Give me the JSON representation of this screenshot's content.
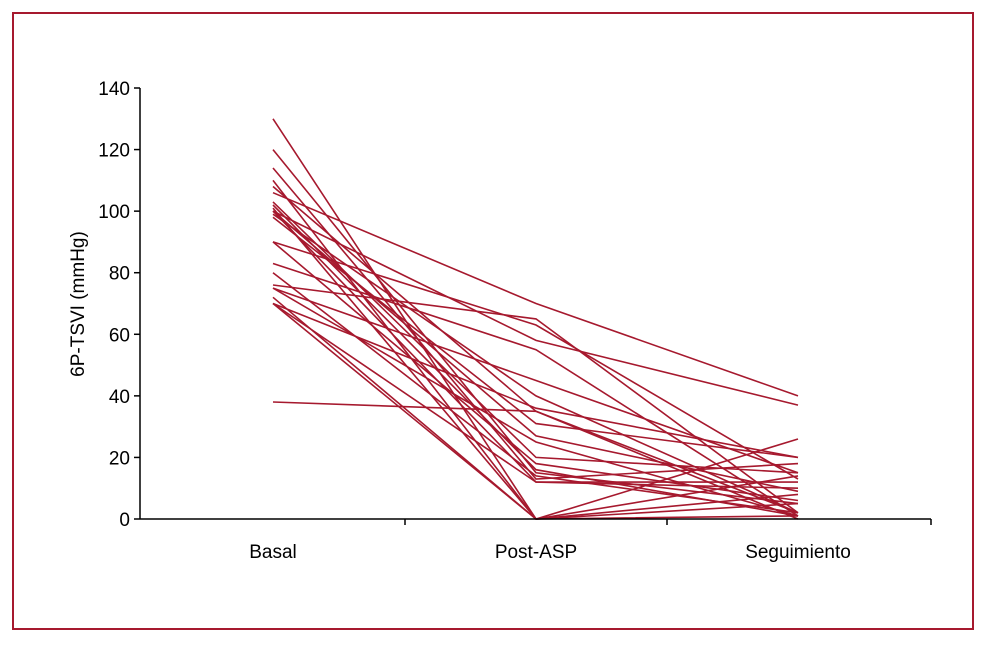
{
  "chart_data": {
    "type": "line",
    "categories": [
      "Basal",
      "Post-ASP",
      "Seguimiento"
    ],
    "ylabel": "6P-TSVI (mmHg)",
    "xlabel": "",
    "ylim": [
      0,
      140
    ],
    "yticks": [
      0,
      20,
      40,
      60,
      80,
      100,
      120,
      140
    ],
    "grid": false,
    "legend": "none",
    "line_color": "#a6192e",
    "frame_color": "#a6192e",
    "series": [
      {
        "values": [
          130,
          0,
          26
        ]
      },
      {
        "values": [
          120,
          15,
          5
        ]
      },
      {
        "values": [
          114,
          13,
          18
        ]
      },
      {
        "values": [
          110,
          0,
          8
        ]
      },
      {
        "values": [
          108,
          35,
          2
        ]
      },
      {
        "values": [
          106,
          70,
          40
        ]
      },
      {
        "values": [
          103,
          20,
          15
        ]
      },
      {
        "values": [
          102,
          16,
          1
        ]
      },
      {
        "values": [
          101,
          0,
          14
        ]
      },
      {
        "values": [
          100,
          58,
          37
        ]
      },
      {
        "values": [
          100,
          27,
          9
        ]
      },
      {
        "values": [
          100,
          12,
          10
        ]
      },
      {
        "values": [
          99,
          40,
          2
        ]
      },
      {
        "values": [
          98,
          31,
          20
        ]
      },
      {
        "values": [
          90,
          63,
          13
        ]
      },
      {
        "values": [
          90,
          18,
          6
        ]
      },
      {
        "values": [
          83,
          55,
          1
        ]
      },
      {
        "values": [
          80,
          14,
          2
        ]
      },
      {
        "values": [
          76,
          65,
          2
        ]
      },
      {
        "values": [
          75,
          45,
          15
        ]
      },
      {
        "values": [
          75,
          25,
          1
        ]
      },
      {
        "values": [
          72,
          0,
          5
        ]
      },
      {
        "values": [
          70,
          36,
          20
        ]
      },
      {
        "values": [
          70,
          12,
          12
        ]
      },
      {
        "values": [
          70,
          0,
          1
        ]
      },
      {
        "values": [
          38,
          35,
          0
        ]
      }
    ]
  }
}
